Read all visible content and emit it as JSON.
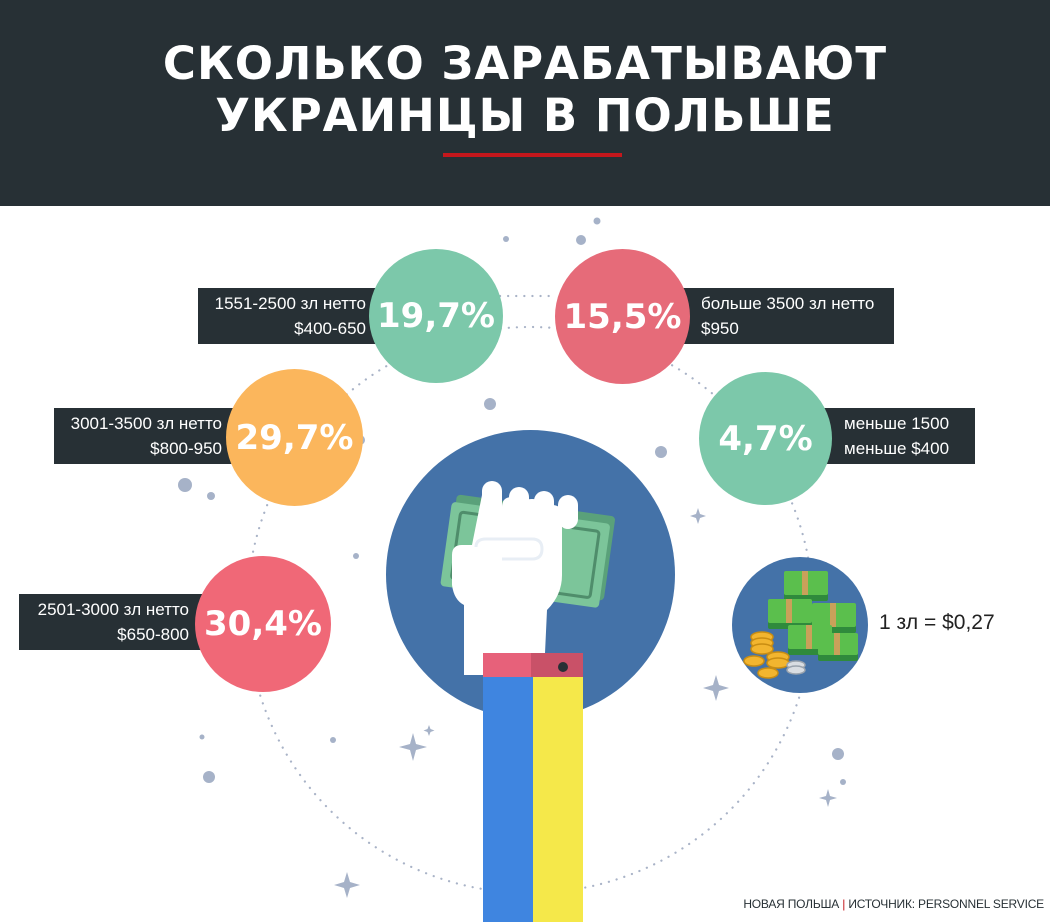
{
  "header": {
    "title_line1": "СКОЛЬКО ЗАРАБАТЫВАЮТ",
    "title_line2": "УКРАИНЦЫ В ПОЛЬШЕ"
  },
  "segments": [
    {
      "percent": "19,7%",
      "value": 19.7,
      "line1": "1551-2500 зл нетто",
      "line2": "$400-650",
      "color": "#7cc8aa"
    },
    {
      "percent": "15,5%",
      "value": 15.5,
      "line1": "больше 3500 зл нетто",
      "line2": "$950",
      "color": "#e66b79"
    },
    {
      "percent": "29,7%",
      "value": 29.7,
      "line1": "3001-3500 зл нетто",
      "line2": "$800-950",
      "color": "#fbb65c"
    },
    {
      "percent": "4,7%",
      "value": 4.7,
      "line1": "меньше 1500",
      "line2": "меньше $400",
      "color": "#7cc8aa"
    },
    {
      "percent": "30,4%",
      "value": 30.4,
      "line1": "2501-3000 зл нетто",
      "line2": "$650-800",
      "color": "#f06877"
    }
  ],
  "exchange_rate": "1 зл = $0,27",
  "footer": {
    "brand": "НОВАЯ ПОЛЬША",
    "separator": "|",
    "source": "ИСТОЧНИК: PERSONNEL SERVICE"
  },
  "colors": {
    "header_bg": "#273035",
    "accent_red": "#c4171c",
    "center_blue": "#4472a8",
    "flag_blue": "#3f85e0",
    "flag_yellow": "#f5e84a"
  },
  "icons": [
    "fist-with-banknote-icon",
    "money-stack-icon",
    "sparkle-icon"
  ]
}
